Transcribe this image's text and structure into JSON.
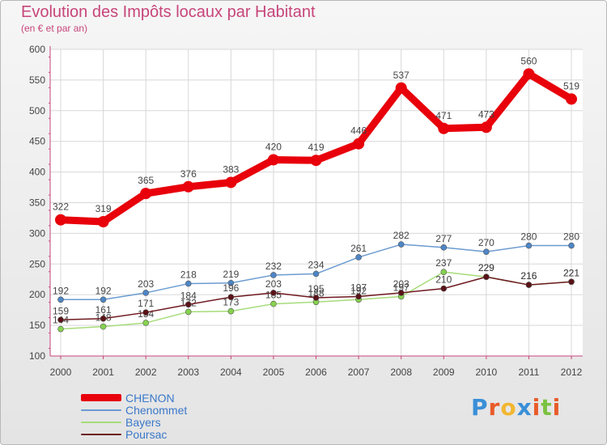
{
  "title": "Evolution des Impôts locaux par Habitant",
  "subtitle": "(en € et par an)",
  "logo": {
    "text": "Proxiti",
    "colors": [
      "#3a8fd8",
      "#e85b2a",
      "#f2b731",
      "#3a8fd8",
      "#e85b2a",
      "#7cc242",
      "#e85b2a"
    ]
  },
  "colors": {
    "title": "#c7457a",
    "axis": "#c7457a",
    "grid": "#d8d8d8",
    "label": "#444444",
    "legend_text": "#3a78c9"
  },
  "chart_data": {
    "type": "line",
    "title": "Evolution des Impôts locaux par Habitant",
    "subtitle": "(en € et par an)",
    "xlabel": "",
    "ylabel": "",
    "ylim": [
      100,
      600
    ],
    "yticks": [
      100,
      150,
      200,
      250,
      300,
      350,
      400,
      450,
      500,
      550,
      600
    ],
    "categories": [
      "2000",
      "2001",
      "2002",
      "2003",
      "2004",
      "2005",
      "2006",
      "2007",
      "2008",
      "2009",
      "2010",
      "2011",
      "2012"
    ],
    "grid": true,
    "legend_position": "bottom-left",
    "series": [
      {
        "name": "CHENON",
        "color": "#e8000b",
        "marker": "#e8000b",
        "line_width": 9,
        "values": [
          322,
          319,
          365,
          376,
          383,
          420,
          419,
          446,
          537,
          471,
          473,
          560,
          519
        ]
      },
      {
        "name": "Chenommet",
        "color": "#6b9bd1",
        "marker": "#4d86c7",
        "line_width": 1.5,
        "values": [
          192,
          192,
          203,
          218,
          219,
          232,
          234,
          261,
          282,
          277,
          270,
          280,
          280
        ]
      },
      {
        "name": "Bayers",
        "color": "#a6dc7a",
        "marker": "#86d24e",
        "line_width": 1.5,
        "values": [
          144,
          148,
          154,
          172,
          173,
          185,
          188,
          192,
          197,
          237,
          229,
          216,
          221
        ]
      },
      {
        "name": "Poursac",
        "color": "#6e1a20",
        "marker": "#5a1217",
        "line_width": 1.5,
        "values": [
          159,
          161,
          171,
          184,
          196,
          203,
          195,
          197,
          203,
          210,
          229,
          216,
          221
        ]
      }
    ]
  }
}
